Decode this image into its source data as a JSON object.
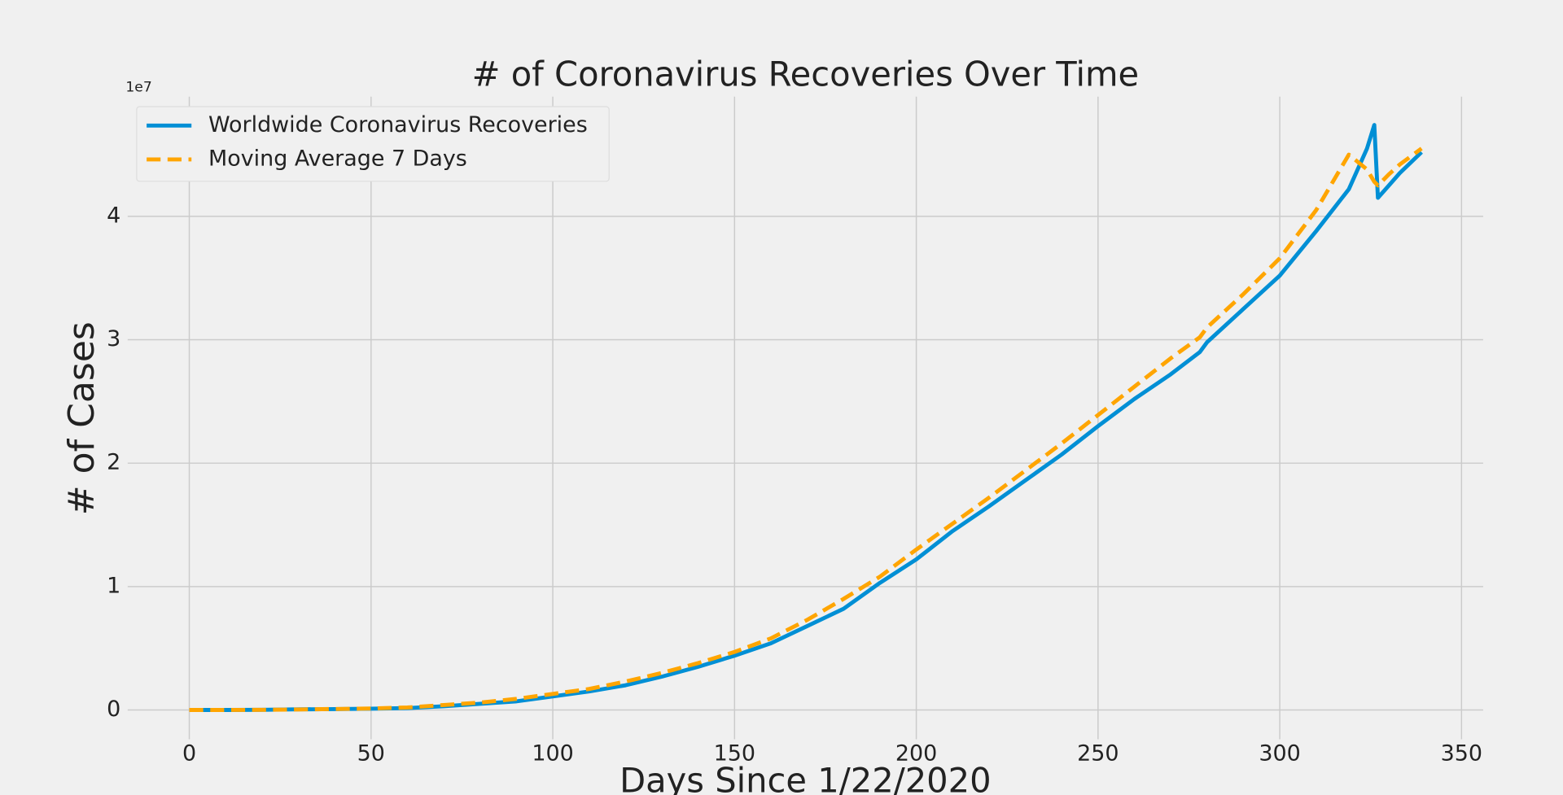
{
  "chart_data": {
    "type": "line",
    "title": "# of Coronavirus Recoveries Over Time",
    "x_label": "Days Since 1/22/2020",
    "y_label": "# of Cases",
    "y_offset_label": "1e7",
    "x": [
      0,
      10,
      20,
      30,
      40,
      50,
      60,
      70,
      80,
      90,
      100,
      110,
      120,
      130,
      140,
      150,
      160,
      170,
      180,
      190,
      200,
      210,
      220,
      230,
      240,
      250,
      260,
      270,
      278,
      280,
      290,
      300,
      310,
      319,
      324,
      326,
      327,
      330,
      333,
      339
    ],
    "series": [
      {
        "name": "Worldwide Coronavirus Recoveries",
        "color": "#008fd5",
        "dash": false,
        "values": [
          0,
          0,
          0.001,
          0.005,
          0.007,
          0.01,
          0.015,
          0.03,
          0.05,
          0.07,
          0.11,
          0.15,
          0.2,
          0.27,
          0.35,
          0.44,
          0.54,
          0.68,
          0.82,
          1.03,
          1.22,
          1.45,
          1.65,
          1.86,
          2.07,
          2.3,
          2.52,
          2.72,
          2.9,
          2.98,
          3.25,
          3.52,
          3.88,
          4.22,
          4.55,
          4.74,
          4.15,
          4.25,
          4.35,
          4.52
        ]
      },
      {
        "name": "Moving Average 7 Days",
        "color": "#ffa500",
        "dash": true,
        "values": [
          0,
          0,
          0.001,
          0.004,
          0.008,
          0.012,
          0.02,
          0.04,
          0.06,
          0.09,
          0.13,
          0.17,
          0.23,
          0.3,
          0.38,
          0.47,
          0.58,
          0.73,
          0.9,
          1.08,
          1.3,
          1.51,
          1.72,
          1.94,
          2.16,
          2.39,
          2.62,
          2.85,
          3.02,
          3.1,
          3.37,
          3.66,
          4.05,
          4.5,
          4.38,
          4.28,
          4.25,
          4.34,
          4.42,
          4.55
        ]
      }
    ],
    "xlim": [
      -16.95,
      355.95
    ],
    "xticks": [
      0,
      50,
      100,
      150,
      200,
      250,
      300,
      350
    ],
    "ylim": [
      -0.237,
      4.97
    ],
    "yticks": [
      0,
      1,
      2,
      3,
      4
    ],
    "grid": true,
    "legend": "upper left"
  }
}
